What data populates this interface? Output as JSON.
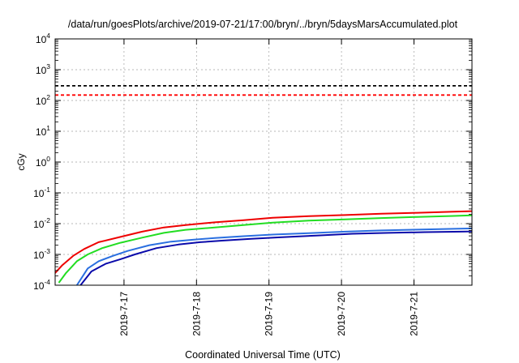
{
  "chart_data": {
    "type": "line",
    "title": "/data/run/goesPlots/archive/2019-07-21/17:00/bryn/../bryn/5daysMarsAccumulated.plot",
    "xlabel": "Coordinated Universal Time (UTC)",
    "ylabel": "cGy",
    "y_scale": "log",
    "ylim": [
      0.0001,
      10000
    ],
    "xlim_days": [
      0,
      5.75
    ],
    "x_ticks": [
      {
        "label": "2019-7-17",
        "day": 0.95
      },
      {
        "label": "2019-7-18",
        "day": 1.95
      },
      {
        "label": "2019-7-19",
        "day": 2.95
      },
      {
        "label": "2019-7-20",
        "day": 3.95
      },
      {
        "label": "2019-7-21",
        "day": 4.95
      }
    ],
    "y_ticks": [
      {
        "base": "10",
        "exp": "4",
        "value": 10000
      },
      {
        "base": "10",
        "exp": "3",
        "value": 1000
      },
      {
        "base": "10",
        "exp": "2",
        "value": 100
      },
      {
        "base": "10",
        "exp": "1",
        "value": 10
      },
      {
        "base": "10",
        "exp": "0",
        "value": 1
      },
      {
        "base": "10",
        "exp": "-1",
        "value": 0.1
      },
      {
        "base": "10",
        "exp": "-2",
        "value": 0.01
      },
      {
        "base": "10",
        "exp": "-3",
        "value": 0.001
      },
      {
        "base": "10",
        "exp": "-4",
        "value": 0.0001
      }
    ],
    "grid": true,
    "reference_lines": [
      {
        "value": 300,
        "color": "#000000",
        "style": "dashed"
      },
      {
        "value": 150,
        "color": "#ff0000",
        "style": "dashed"
      }
    ],
    "series": [
      {
        "color": "#ee0000",
        "x": [
          0.0,
          0.1,
          0.25,
          0.4,
          0.6,
          0.9,
          1.2,
          1.5,
          1.8,
          2.2,
          2.6,
          3.0,
          3.5,
          4.0,
          4.5,
          5.0,
          5.5,
          5.75
        ],
        "y": [
          0.00025,
          0.00045,
          0.0009,
          0.0015,
          0.0025,
          0.0037,
          0.0055,
          0.0075,
          0.009,
          0.011,
          0.013,
          0.0155,
          0.0175,
          0.019,
          0.021,
          0.0225,
          0.0245,
          0.0255
        ]
      },
      {
        "color": "#22dd22",
        "x": [
          0.05,
          0.15,
          0.3,
          0.45,
          0.65,
          0.9,
          1.2,
          1.5,
          1.8,
          2.2,
          2.6,
          3.0,
          3.5,
          4.0,
          4.5,
          5.0,
          5.5,
          5.75
        ],
        "y": [
          0.00012,
          0.00025,
          0.0006,
          0.001,
          0.0016,
          0.0024,
          0.0035,
          0.005,
          0.0063,
          0.0075,
          0.009,
          0.0108,
          0.0125,
          0.0138,
          0.0152,
          0.0165,
          0.0178,
          0.0185
        ]
      },
      {
        "color": "#2a6fe0",
        "x": [
          0.3,
          0.45,
          0.6,
          0.8,
          1.0,
          1.3,
          1.6,
          1.9,
          2.2,
          2.6,
          3.0,
          3.5,
          4.0,
          4.5,
          5.0,
          5.5,
          5.75
        ],
        "y": [
          0.0001,
          0.00035,
          0.0006,
          0.0009,
          0.0013,
          0.002,
          0.0026,
          0.003,
          0.0034,
          0.0039,
          0.0044,
          0.0049,
          0.0055,
          0.006,
          0.0064,
          0.0068,
          0.007
        ]
      },
      {
        "color": "#0a0aaa",
        "x": [
          0.35,
          0.5,
          0.7,
          0.9,
          1.1,
          1.4,
          1.7,
          2.0,
          2.3,
          2.7,
          3.1,
          3.6,
          4.1,
          4.6,
          5.1,
          5.6,
          5.75
        ],
        "y": [
          0.0001,
          0.00028,
          0.0005,
          0.0007,
          0.001,
          0.0016,
          0.0021,
          0.0025,
          0.0028,
          0.0032,
          0.0036,
          0.0041,
          0.0047,
          0.005,
          0.0053,
          0.0055,
          0.0056
        ]
      }
    ]
  }
}
